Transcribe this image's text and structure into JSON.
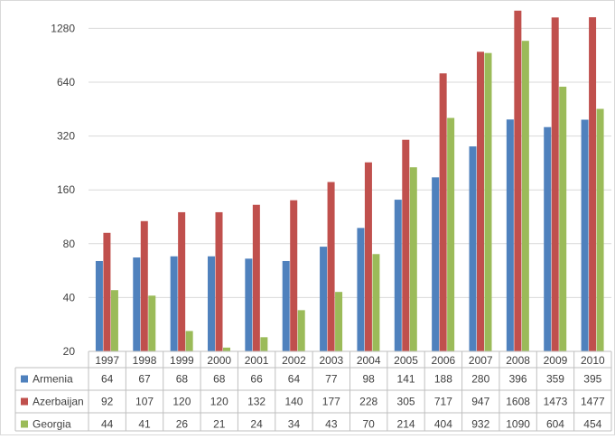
{
  "chart_data": {
    "type": "bar",
    "title": "",
    "xlabel": "",
    "ylabel": "",
    "y_scale": "log2",
    "ylim": [
      20,
      1600
    ],
    "y_ticks": [
      20,
      40,
      80,
      160,
      320,
      640,
      1280
    ],
    "grid": "horizontal",
    "legend": "data-table-left",
    "categories": [
      "1997",
      "1998",
      "1999",
      "2000",
      "2001",
      "2002",
      "2003",
      "2004",
      "2005",
      "2006",
      "2007",
      "2008",
      "2009",
      "2010"
    ],
    "series": [
      {
        "name": "Armenia",
        "color": "#4f81bd",
        "values": [
          64,
          67,
          68,
          68,
          66,
          64,
          77,
          98,
          141,
          188,
          280,
          396,
          359,
          395
        ]
      },
      {
        "name": "Azerbaijan",
        "color": "#c0504d",
        "values": [
          92,
          107,
          120,
          120,
          132,
          140,
          177,
          228,
          305,
          717,
          947,
          1608,
          1473,
          1477
        ]
      },
      {
        "name": "Georgia",
        "color": "#9bbb59",
        "values": [
          44,
          41,
          26,
          21,
          24,
          34,
          43,
          70,
          214,
          404,
          932,
          1090,
          604,
          454
        ]
      }
    ]
  }
}
